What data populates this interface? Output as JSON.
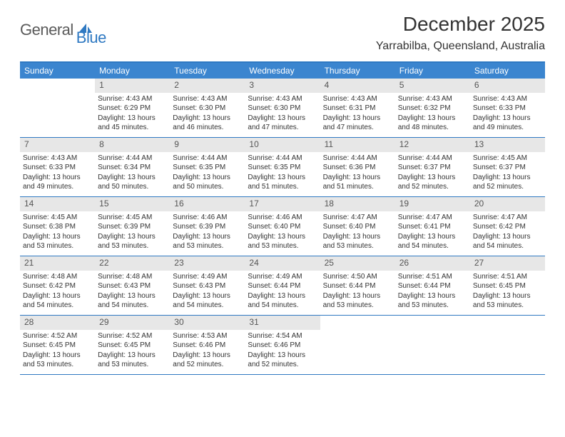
{
  "logo": {
    "text1": "General",
    "text2": "Blue"
  },
  "title": "December 2025",
  "location": "Yarrabilba, Queensland, Australia",
  "accent_color": "#3b85cf",
  "rule_color": "#2f79c2",
  "daynum_bg": "#e7e7e7",
  "weekdays": [
    "Sunday",
    "Monday",
    "Tuesday",
    "Wednesday",
    "Thursday",
    "Friday",
    "Saturday"
  ],
  "weeks": [
    [
      {
        "n": "",
        "lines": []
      },
      {
        "n": "1",
        "lines": [
          "Sunrise: 4:43 AM",
          "Sunset: 6:29 PM",
          "Daylight: 13 hours and 45 minutes."
        ]
      },
      {
        "n": "2",
        "lines": [
          "Sunrise: 4:43 AM",
          "Sunset: 6:30 PM",
          "Daylight: 13 hours and 46 minutes."
        ]
      },
      {
        "n": "3",
        "lines": [
          "Sunrise: 4:43 AM",
          "Sunset: 6:30 PM",
          "Daylight: 13 hours and 47 minutes."
        ]
      },
      {
        "n": "4",
        "lines": [
          "Sunrise: 4:43 AM",
          "Sunset: 6:31 PM",
          "Daylight: 13 hours and 47 minutes."
        ]
      },
      {
        "n": "5",
        "lines": [
          "Sunrise: 4:43 AM",
          "Sunset: 6:32 PM",
          "Daylight: 13 hours and 48 minutes."
        ]
      },
      {
        "n": "6",
        "lines": [
          "Sunrise: 4:43 AM",
          "Sunset: 6:33 PM",
          "Daylight: 13 hours and 49 minutes."
        ]
      }
    ],
    [
      {
        "n": "7",
        "lines": [
          "Sunrise: 4:43 AM",
          "Sunset: 6:33 PM",
          "Daylight: 13 hours and 49 minutes."
        ]
      },
      {
        "n": "8",
        "lines": [
          "Sunrise: 4:44 AM",
          "Sunset: 6:34 PM",
          "Daylight: 13 hours and 50 minutes."
        ]
      },
      {
        "n": "9",
        "lines": [
          "Sunrise: 4:44 AM",
          "Sunset: 6:35 PM",
          "Daylight: 13 hours and 50 minutes."
        ]
      },
      {
        "n": "10",
        "lines": [
          "Sunrise: 4:44 AM",
          "Sunset: 6:35 PM",
          "Daylight: 13 hours and 51 minutes."
        ]
      },
      {
        "n": "11",
        "lines": [
          "Sunrise: 4:44 AM",
          "Sunset: 6:36 PM",
          "Daylight: 13 hours and 51 minutes."
        ]
      },
      {
        "n": "12",
        "lines": [
          "Sunrise: 4:44 AM",
          "Sunset: 6:37 PM",
          "Daylight: 13 hours and 52 minutes."
        ]
      },
      {
        "n": "13",
        "lines": [
          "Sunrise: 4:45 AM",
          "Sunset: 6:37 PM",
          "Daylight: 13 hours and 52 minutes."
        ]
      }
    ],
    [
      {
        "n": "14",
        "lines": [
          "Sunrise: 4:45 AM",
          "Sunset: 6:38 PM",
          "Daylight: 13 hours and 53 minutes."
        ]
      },
      {
        "n": "15",
        "lines": [
          "Sunrise: 4:45 AM",
          "Sunset: 6:39 PM",
          "Daylight: 13 hours and 53 minutes."
        ]
      },
      {
        "n": "16",
        "lines": [
          "Sunrise: 4:46 AM",
          "Sunset: 6:39 PM",
          "Daylight: 13 hours and 53 minutes."
        ]
      },
      {
        "n": "17",
        "lines": [
          "Sunrise: 4:46 AM",
          "Sunset: 6:40 PM",
          "Daylight: 13 hours and 53 minutes."
        ]
      },
      {
        "n": "18",
        "lines": [
          "Sunrise: 4:47 AM",
          "Sunset: 6:40 PM",
          "Daylight: 13 hours and 53 minutes."
        ]
      },
      {
        "n": "19",
        "lines": [
          "Sunrise: 4:47 AM",
          "Sunset: 6:41 PM",
          "Daylight: 13 hours and 54 minutes."
        ]
      },
      {
        "n": "20",
        "lines": [
          "Sunrise: 4:47 AM",
          "Sunset: 6:42 PM",
          "Daylight: 13 hours and 54 minutes."
        ]
      }
    ],
    [
      {
        "n": "21",
        "lines": [
          "Sunrise: 4:48 AM",
          "Sunset: 6:42 PM",
          "Daylight: 13 hours and 54 minutes."
        ]
      },
      {
        "n": "22",
        "lines": [
          "Sunrise: 4:48 AM",
          "Sunset: 6:43 PM",
          "Daylight: 13 hours and 54 minutes."
        ]
      },
      {
        "n": "23",
        "lines": [
          "Sunrise: 4:49 AM",
          "Sunset: 6:43 PM",
          "Daylight: 13 hours and 54 minutes."
        ]
      },
      {
        "n": "24",
        "lines": [
          "Sunrise: 4:49 AM",
          "Sunset: 6:44 PM",
          "Daylight: 13 hours and 54 minutes."
        ]
      },
      {
        "n": "25",
        "lines": [
          "Sunrise: 4:50 AM",
          "Sunset: 6:44 PM",
          "Daylight: 13 hours and 53 minutes."
        ]
      },
      {
        "n": "26",
        "lines": [
          "Sunrise: 4:51 AM",
          "Sunset: 6:44 PM",
          "Daylight: 13 hours and 53 minutes."
        ]
      },
      {
        "n": "27",
        "lines": [
          "Sunrise: 4:51 AM",
          "Sunset: 6:45 PM",
          "Daylight: 13 hours and 53 minutes."
        ]
      }
    ],
    [
      {
        "n": "28",
        "lines": [
          "Sunrise: 4:52 AM",
          "Sunset: 6:45 PM",
          "Daylight: 13 hours and 53 minutes."
        ]
      },
      {
        "n": "29",
        "lines": [
          "Sunrise: 4:52 AM",
          "Sunset: 6:45 PM",
          "Daylight: 13 hours and 53 minutes."
        ]
      },
      {
        "n": "30",
        "lines": [
          "Sunrise: 4:53 AM",
          "Sunset: 6:46 PM",
          "Daylight: 13 hours and 52 minutes."
        ]
      },
      {
        "n": "31",
        "lines": [
          "Sunrise: 4:54 AM",
          "Sunset: 6:46 PM",
          "Daylight: 13 hours and 52 minutes."
        ]
      },
      {
        "n": "",
        "lines": []
      },
      {
        "n": "",
        "lines": []
      },
      {
        "n": "",
        "lines": []
      }
    ]
  ]
}
